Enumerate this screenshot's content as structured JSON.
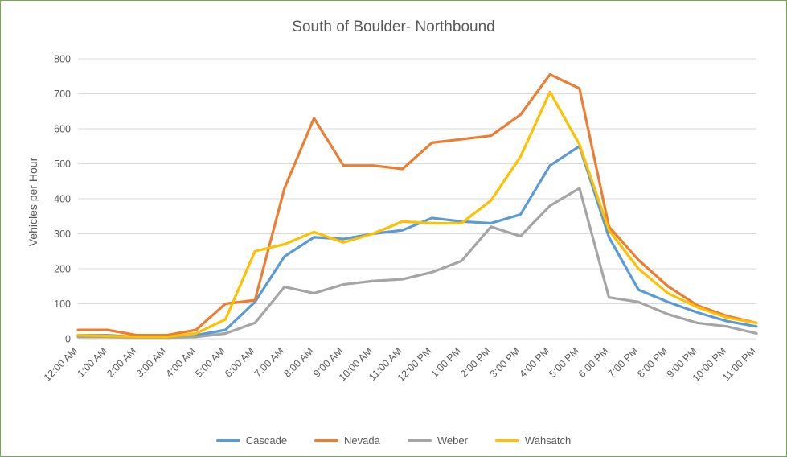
{
  "frame": {
    "border_color": "#70AD47",
    "background": "#FFFFFF"
  },
  "chart_data": {
    "type": "line",
    "title": "South of Boulder- Northbound",
    "xlabel": "",
    "ylabel": "Vehicles per Hour",
    "ylim": [
      0,
      800
    ],
    "ytick_step": 100,
    "grid": true,
    "gridline_color": "#D9D9D9",
    "legend_position": "bottom",
    "categories": [
      "12:00 AM",
      "1:00 AM",
      "2:00 AM",
      "3:00 AM",
      "4:00 AM",
      "5:00 AM",
      "6:00 AM",
      "7:00 AM",
      "8:00 AM",
      "9:00 AM",
      "10:00 AM",
      "11:00 AM",
      "12:00 PM",
      "1:00 PM",
      "2:00 PM",
      "3:00 PM",
      "4:00 PM",
      "5:00 PM",
      "6:00 PM",
      "7:00 PM",
      "8:00 PM",
      "9:00 PM",
      "10:00 PM",
      "11:00 PM"
    ],
    "series": [
      {
        "name": "Cascade",
        "color": "#5B9BD5",
        "values": [
          10,
          10,
          5,
          5,
          10,
          25,
          105,
          235,
          290,
          285,
          300,
          310,
          345,
          335,
          330,
          355,
          495,
          550,
          290,
          140,
          105,
          75,
          50,
          35
        ]
      },
      {
        "name": "Nevada",
        "color": "#ED7D31",
        "values": [
          25,
          25,
          10,
          10,
          25,
          100,
          110,
          430,
          630,
          495,
          495,
          485,
          560,
          570,
          580,
          640,
          755,
          715,
          320,
          225,
          150,
          95,
          65,
          45
        ]
      },
      {
        "name": "Weber",
        "color": "#A5A5A5",
        "values": [
          5,
          5,
          3,
          3,
          5,
          15,
          45,
          148,
          130,
          155,
          165,
          170,
          190,
          222,
          320,
          293,
          380,
          430,
          118,
          105,
          70,
          45,
          35,
          15
        ]
      },
      {
        "name": "Wahsatch",
        "color": "#FFC000",
        "values": [
          10,
          8,
          5,
          5,
          15,
          55,
          250,
          270,
          305,
          275,
          300,
          335,
          330,
          330,
          395,
          520,
          705,
          555,
          310,
          200,
          130,
          90,
          60,
          45
        ]
      }
    ]
  }
}
